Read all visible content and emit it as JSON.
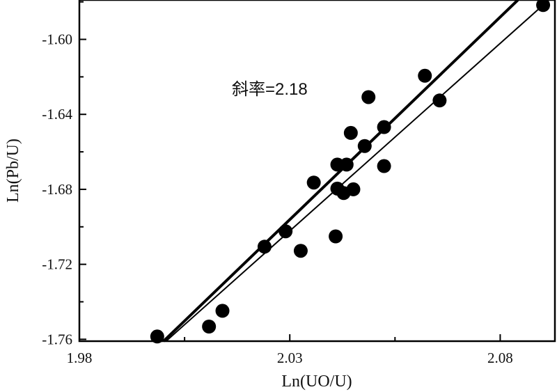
{
  "chart_data": {
    "type": "scatter",
    "title": "",
    "xlabel": "Ln(UO/U)",
    "ylabel": "Ln(Pb/U)",
    "xlim": [
      1.98,
      2.093
    ],
    "ylim": [
      -1.761,
      -1.579
    ],
    "x_ticks": [
      "1.98",
      "2.03",
      "2.08"
    ],
    "y_ticks": [
      "-1.60",
      "-1.64",
      "-1.68",
      "-1.72",
      "-1.76"
    ],
    "grid": false,
    "legend": "none",
    "annotation": "斜率=2.18",
    "points": [
      {
        "x": 1.9985,
        "y": -1.7585
      },
      {
        "x": 2.0108,
        "y": -1.7532
      },
      {
        "x": 2.014,
        "y": -1.7448
      },
      {
        "x": 2.024,
        "y": -1.7106
      },
      {
        "x": 2.029,
        "y": -1.7024
      },
      {
        "x": 2.0326,
        "y": -1.7128
      },
      {
        "x": 2.0357,
        "y": -1.6764
      },
      {
        "x": 2.0409,
        "y": -1.7051
      },
      {
        "x": 2.0413,
        "y": -1.6668
      },
      {
        "x": 2.0413,
        "y": -1.6796
      },
      {
        "x": 2.0428,
        "y": -1.682
      },
      {
        "x": 2.0435,
        "y": -1.6668
      },
      {
        "x": 2.0445,
        "y": -1.6499
      },
      {
        "x": 2.0451,
        "y": -1.68
      },
      {
        "x": 2.0478,
        "y": -1.6569
      },
      {
        "x": 2.0487,
        "y": -1.6308
      },
      {
        "x": 2.0524,
        "y": -1.6468
      },
      {
        "x": 2.0524,
        "y": -1.6676
      },
      {
        "x": 2.0621,
        "y": -1.6194
      },
      {
        "x": 2.0656,
        "y": -1.6326
      },
      {
        "x": 2.0902,
        "y": -1.5817
      }
    ],
    "lines": [
      {
        "style": "thick",
        "x": [
          2.0,
          2.0842
        ],
        "y": [
          -1.761,
          -1.579
        ]
      },
      {
        "style": "thin",
        "x": [
          2.0006,
          2.0902
        ],
        "y": [
          -1.761,
          -1.5817
        ]
      }
    ]
  }
}
